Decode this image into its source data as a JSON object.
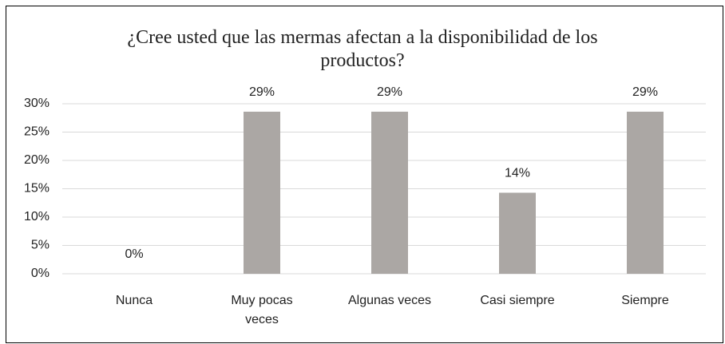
{
  "chart_data": {
    "type": "bar",
    "title": "¿Cree usted que las mermas afectan a la disponibilidad de los productos?",
    "categories": [
      "Nunca",
      "Muy pocas veces",
      "Algunas veces",
      "Casi siempre",
      "Siempre"
    ],
    "values": [
      0,
      28.6,
      28.6,
      14.3,
      28.6
    ],
    "value_labels": [
      "0%",
      "29%",
      "29%",
      "14%",
      "29%"
    ],
    "color": "#aba7a4",
    "ylim": [
      0,
      30
    ],
    "yticks": [
      {
        "value": 0,
        "label": "0%"
      },
      {
        "value": 5,
        "label": "5%"
      },
      {
        "value": 10,
        "label": "10%"
      },
      {
        "value": 15,
        "label": "15%"
      },
      {
        "value": 20,
        "label": "20%"
      },
      {
        "value": 25,
        "label": "25%"
      },
      {
        "value": 30,
        "label": "30%"
      }
    ],
    "grid": true
  }
}
